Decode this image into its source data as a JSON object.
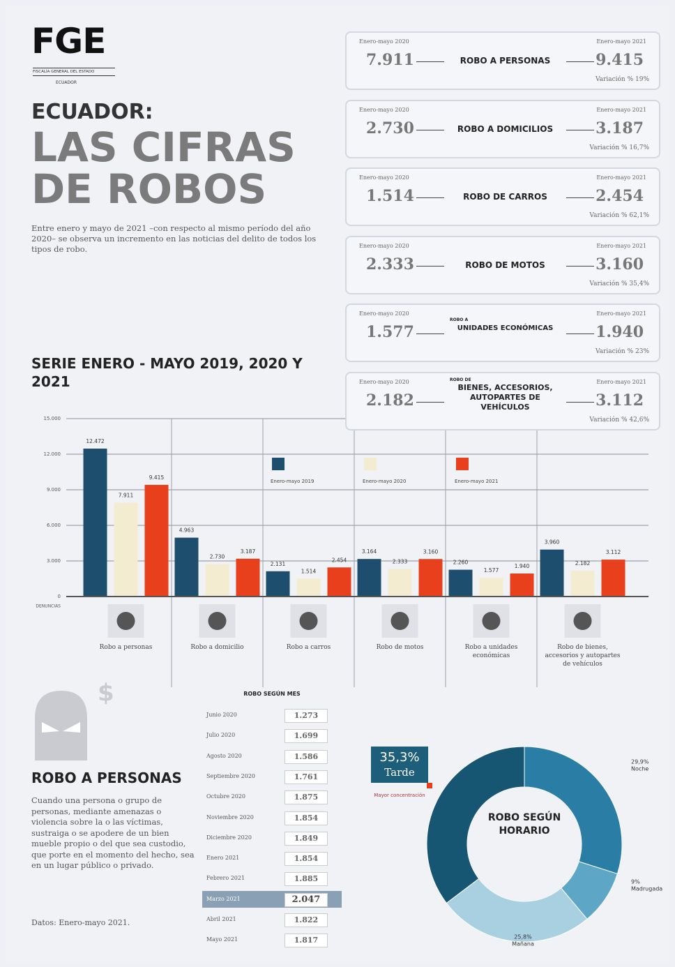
{
  "header": {
    "logo": "FGE",
    "org": "FISCALÍA GENERAL DEL ESTADO",
    "country": "ECUADOR"
  },
  "title": {
    "line1": "ECUADOR:",
    "line2": "LAS CIFRAS",
    "line3": "DE ROBOS"
  },
  "intro": "Entre enero y mayo de 2021 –con respecto al mismo período del año 2020– se observa un incremento en las noticias del delito de todos los tipos de robo.",
  "cards": [
    {
      "from_label": "Enero-mayo 2020",
      "from_value": "7.911",
      "name": "ROBO A PERSONAS",
      "to_label": "Enero-mayo 2021",
      "to_value": "9.415",
      "variation": "Variación % 19%"
    },
    {
      "from_label": "Enero-mayo 2020",
      "from_value": "2.730",
      "name": "ROBO A DOMICILIOS",
      "to_label": "Enero-mayo 2021",
      "to_value": "3.187",
      "variation": "Variación % 16,7%"
    },
    {
      "from_label": "Enero-mayo 2020",
      "from_value": "1.514",
      "name": "ROBO DE CARROS",
      "to_label": "Enero-mayo 2021",
      "to_value": "2.454",
      "variation": "Variación % 62,1%"
    },
    {
      "from_label": "Enero-mayo 2020",
      "from_value": "2.333",
      "name": "ROBO DE MOTOS",
      "to_label": "Enero-mayo 2021",
      "to_value": "3.160",
      "variation": "Variación % 35,4%"
    },
    {
      "from_label": "Enero-mayo 2020",
      "from_value": "1.577",
      "prefix": "ROBO A",
      "name": "UNIDADES ECONÓMICAS",
      "to_label": "Enero-mayo 2021",
      "to_value": "1.940",
      "variation": "Variación % 23%"
    },
    {
      "from_label": "Enero-mayo 2020",
      "from_value": "2.182",
      "prefix": "ROBO DE",
      "name": "BIENES, ACCESORIOS, AUTOPARTES DE VEHÍCULOS",
      "to_label": "Enero-mayo 2021",
      "to_value": "3.112",
      "variation": "Variación % 42,6%"
    }
  ],
  "chart_data": [
    {
      "type": "bar",
      "title": "SERIE ENERO - MAYO 2019, 2020 Y 2021",
      "y_label": "DENUNCIAS",
      "categories": [
        "Robo a personas",
        "Robo a domicilio",
        "Robo a carros",
        "Robo de motos",
        "Robo a unidades económicas",
        "Robo de bienes, accesorios y autopartes de vehículos"
      ],
      "series": [
        {
          "name": "Enero-mayo 2019",
          "color": "#1d4e6e",
          "values": [
            12472,
            4963,
            2131,
            3164,
            2260,
            3960
          ],
          "value_labels": [
            "12.472",
            "4.963",
            "2.131",
            "3.164",
            "2.260",
            "3.960"
          ]
        },
        {
          "name": "Enero-mayo 2020",
          "color": "#f3ecd0",
          "values": [
            7911,
            2730,
            1514,
            2333,
            1577,
            2182
          ],
          "value_labels": [
            "7.911",
            "2.730",
            "1.514",
            "2.333",
            "1.577",
            "2.182"
          ]
        },
        {
          "name": "Enero-mayo 2021",
          "color": "#e8401c",
          "values": [
            9415,
            3187,
            2454,
            3160,
            1940,
            3112
          ],
          "value_labels": [
            "9.415",
            "3.187",
            "2.454",
            "3.160",
            "1.940",
            "3.112"
          ]
        }
      ],
      "ylim": [
        0,
        15000
      ],
      "yticks": [
        0,
        {
          "value": 3000,
          "label": "3.000"
        },
        {
          "value": 6000,
          "label": "6.000"
        },
        {
          "value": 9000,
          "label": "9.000"
        },
        {
          "value": 12000,
          "label": "12.000"
        },
        {
          "value": 15000,
          "label": "15.000"
        }
      ],
      "grid": true
    },
    {
      "type": "pie",
      "title": "ROBO SEGÚN HORARIO",
      "categories": [
        "Noche",
        "Madrugada",
        "Mañana",
        "Tarde"
      ],
      "values": [
        29.9,
        9,
        25.8,
        35.3
      ],
      "value_labels": [
        "29,9%",
        "9%",
        "25,8%",
        "35,3%"
      ],
      "colors": [
        "#2a7ea6",
        "#5ea6c6",
        "#a9d0e1",
        "#175673"
      ],
      "annotation": "Mayor concentración",
      "donut": true
    }
  ],
  "table": {
    "title": "ROBO SEGÚN MES",
    "rows": [
      [
        "Junio 2020",
        "1.273"
      ],
      [
        "Julio 2020",
        "1.699"
      ],
      [
        "Agosto 2020",
        "1.586"
      ],
      [
        "Septiembre 2020",
        "1.761"
      ],
      [
        "Octubre 2020",
        "1.875"
      ],
      [
        "Noviembre 2020",
        "1.854"
      ],
      [
        "Diciembre 2020",
        "1.849"
      ],
      [
        "Enero 2021",
        "1.854"
      ],
      [
        "Febrero 2021",
        "1.885"
      ],
      [
        "Marzo 2021",
        "2.047"
      ],
      [
        "Abril 2021",
        "1.822"
      ],
      [
        "Mayo 2021",
        "1.817"
      ]
    ],
    "highlight": 9
  },
  "person": {
    "title": "ROBO A PERSONAS",
    "text": "Cuando una persona o grupo de personas, mediante amenazas o violencia sobre la o las víctimas, sustraiga o se apodere de un bien mueble propio o del que sea custodio, que porte en el momento del hecho, sea en un lugar público o privado.",
    "source": "Datos: Enero-mayo 2021."
  }
}
